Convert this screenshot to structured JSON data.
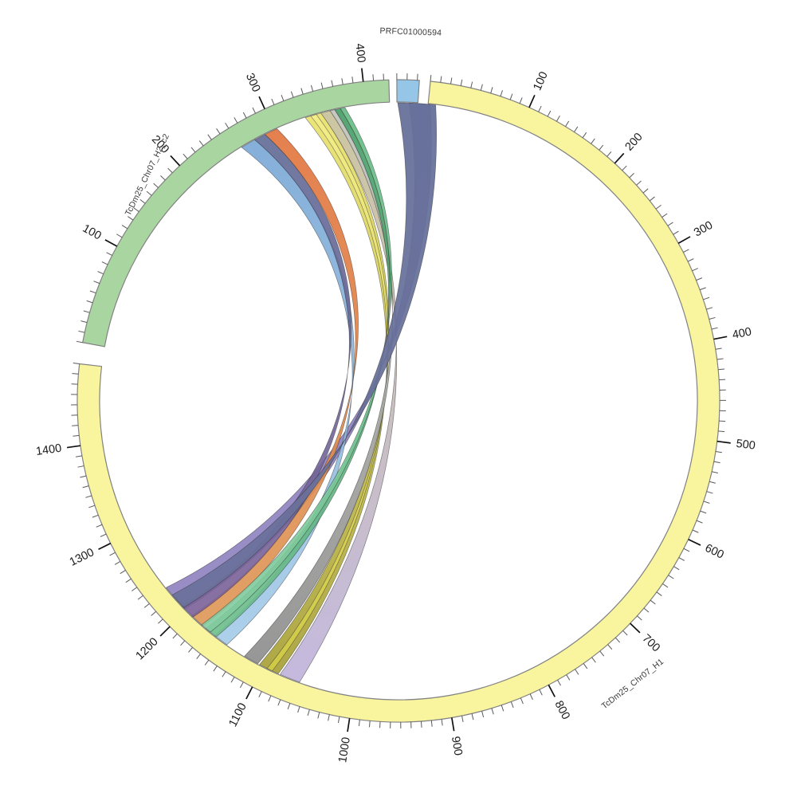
{
  "page": {
    "background": "#ffffff"
  },
  "chart_data": {
    "type": "circos-chord",
    "description": "Circular synteny (Circos) plot: contig PRFC01000594 and haplotype H2_c2 aligned against chromosome haplotype H1",
    "deg_per_unit": 0.18306,
    "chromosomes": [
      {
        "id": "H1",
        "label": "TcDm25_Chr07_H1",
        "color": "#f9f49e",
        "border": "#828282",
        "start_deg": 5.7,
        "length_units": 1480,
        "tick_minor": 10,
        "tick_major": 100,
        "label_pos_deg": 140.4,
        "label_radius": 461,
        "label_rotation_deg": -38
      },
      {
        "id": "H2c2",
        "label": "TcDm25_Chr07_H2_c2",
        "color": "#a9d5a0",
        "border": "#828282",
        "start_deg": 280.47,
        "length_units": 425,
        "tick_minor": 10,
        "tick_major": 100,
        "label_pos_deg": 312,
        "label_radius": 424,
        "label_rotation_deg": -64
      },
      {
        "id": "PRFC",
        "label": "PRFC01000594",
        "color": "#95c6e8",
        "border": "#828282",
        "start_deg": -0.3,
        "length_units": 22,
        "tick_minor": 10,
        "tick_major": 0,
        "label_pos_deg": 1.9,
        "label_radius": 463,
        "label_rotation_deg": 2
      }
    ],
    "tick_labels": {
      "H1": [
        100,
        200,
        300,
        400,
        500,
        600,
        700,
        800,
        900,
        1000,
        1100,
        1200,
        1300,
        1400
      ],
      "H2c2": [
        100,
        200,
        300,
        400
      ]
    },
    "ribbons": [
      {
        "name": "violet-wide",
        "source_chrom": "H1",
        "s0": -20,
        "s1": 2,
        "t0": 1202,
        "t1": 1232,
        "color_top": "#8f81bd",
        "color_bottom": "#9184c2",
        "opacity": 0.92,
        "swing": "low"
      },
      {
        "name": "tan-lavender",
        "source_chrom": "H2c2",
        "s0": 352,
        "s1": 362,
        "t0": 1058,
        "t1": 1080,
        "color_top": "#c9c298",
        "color_bottom": "#c0b4da",
        "opacity": 0.92,
        "swing": "high"
      },
      {
        "name": "olive-yellow",
        "source_chrom": "H2c2",
        "s0": 335,
        "s1": 352,
        "t0": 1082,
        "t1": 1104,
        "color_top": "#ece673",
        "color_bottom": "#a9a139",
        "opacity": 0.93,
        "swing": "high"
      },
      {
        "name": "olive-stripe",
        "source_chrom": "H2c2",
        "s0": 341,
        "s1": 347,
        "t0": 1089,
        "t1": 1095,
        "color_top": "#f4ef8c",
        "color_bottom": "#d2cc45",
        "opacity": 0.9,
        "swing": "high"
      },
      {
        "name": "gray",
        "source_chrom": "H2c2",
        "s0": 362,
        "s1": 367,
        "t0": 1106,
        "t1": 1122,
        "color_top": "#c3c6bd",
        "color_bottom": "#8d8d8d",
        "opacity": 0.92,
        "swing": "high"
      },
      {
        "name": "cyan",
        "source_chrom": "H2c2",
        "s0": 261,
        "s1": 277,
        "t0": 1144,
        "t1": 1160,
        "color_top": "#74a3d3",
        "color_bottom": "#a6cde9",
        "opacity": 0.9,
        "swing": "high"
      },
      {
        "name": "orange",
        "source_chrom": "H2c2",
        "s0": 289,
        "s1": 303,
        "t0": 1176,
        "t1": 1192,
        "color_top": "#e2703a",
        "color_bottom": "#dd9a58",
        "opacity": 0.9,
        "swing": "high"
      },
      {
        "name": "purple",
        "source_chrom": "H2c2",
        "s0": 277,
        "s1": 289,
        "t0": 1190,
        "t1": 1206,
        "color_top": "#5e6b96",
        "color_bottom": "#7e6098",
        "opacity": 0.9,
        "swing": "high"
      },
      {
        "name": "dark-green",
        "source_chrom": "H2c2",
        "s0": 367,
        "s1": 373,
        "t0": 1158,
        "t1": 1172,
        "color_top": "#449a64",
        "color_bottom": "#6ec08e",
        "opacity": 0.9,
        "swing": "high"
      },
      {
        "name": "sea-green",
        "source_chrom": "H2c2",
        "s0": 373,
        "s1": 378,
        "t0": 1166,
        "t1": 1178,
        "color_top": "#63ba82",
        "color_bottom": "#85cda2",
        "opacity": 0.9,
        "swing": "high"
      },
      {
        "name": "slate-wide",
        "source_chrom": "H1",
        "s0": -32,
        "s1": 8,
        "t0": 1204,
        "t1": 1222,
        "color_top": "#646f99",
        "color_bottom": "#6b719b",
        "opacity": 0.93,
        "swing": "low"
      }
    ],
    "style": {
      "tick_minor_color": "#5a5a5a",
      "tick_major_color": "#111111",
      "ribbon_outline": "rgba(45,45,45,0.55)"
    }
  }
}
